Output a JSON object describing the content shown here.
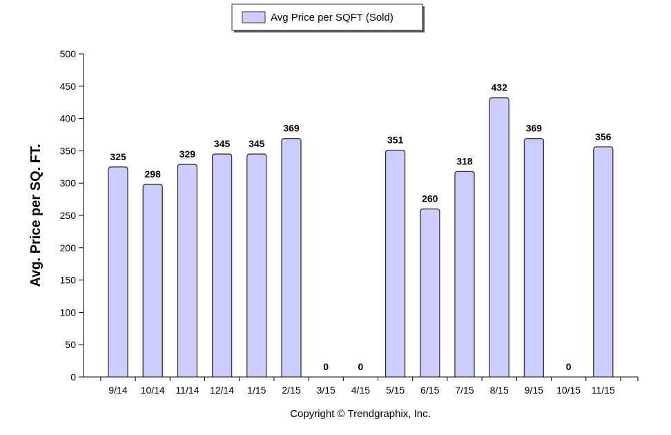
{
  "chart_data": {
    "type": "bar",
    "categories": [
      "9/14",
      "10/14",
      "11/14",
      "12/14",
      "1/15",
      "2/15",
      "3/15",
      "4/15",
      "5/15",
      "6/15",
      "7/15",
      "8/15",
      "9/15",
      "10/15",
      "11/15"
    ],
    "series": [
      {
        "name": "Avg Price per SQFT (Sold)",
        "values": [
          325,
          298,
          329,
          345,
          345,
          369,
          0,
          0,
          351,
          260,
          318,
          432,
          369,
          0,
          356
        ]
      }
    ],
    "ylabel": "Avg. Price per SQ. FT.",
    "xlabel": "",
    "ylim": [
      0,
      500
    ],
    "yticks": [
      0,
      50,
      100,
      150,
      200,
      250,
      300,
      350,
      400,
      450,
      500
    ],
    "legend_position": "top-center",
    "grid": false,
    "bar_color": "#ccccff",
    "bar_edge_color": "#333333"
  },
  "footer": {
    "copyright": "Copyright © Trendgraphix, Inc."
  }
}
